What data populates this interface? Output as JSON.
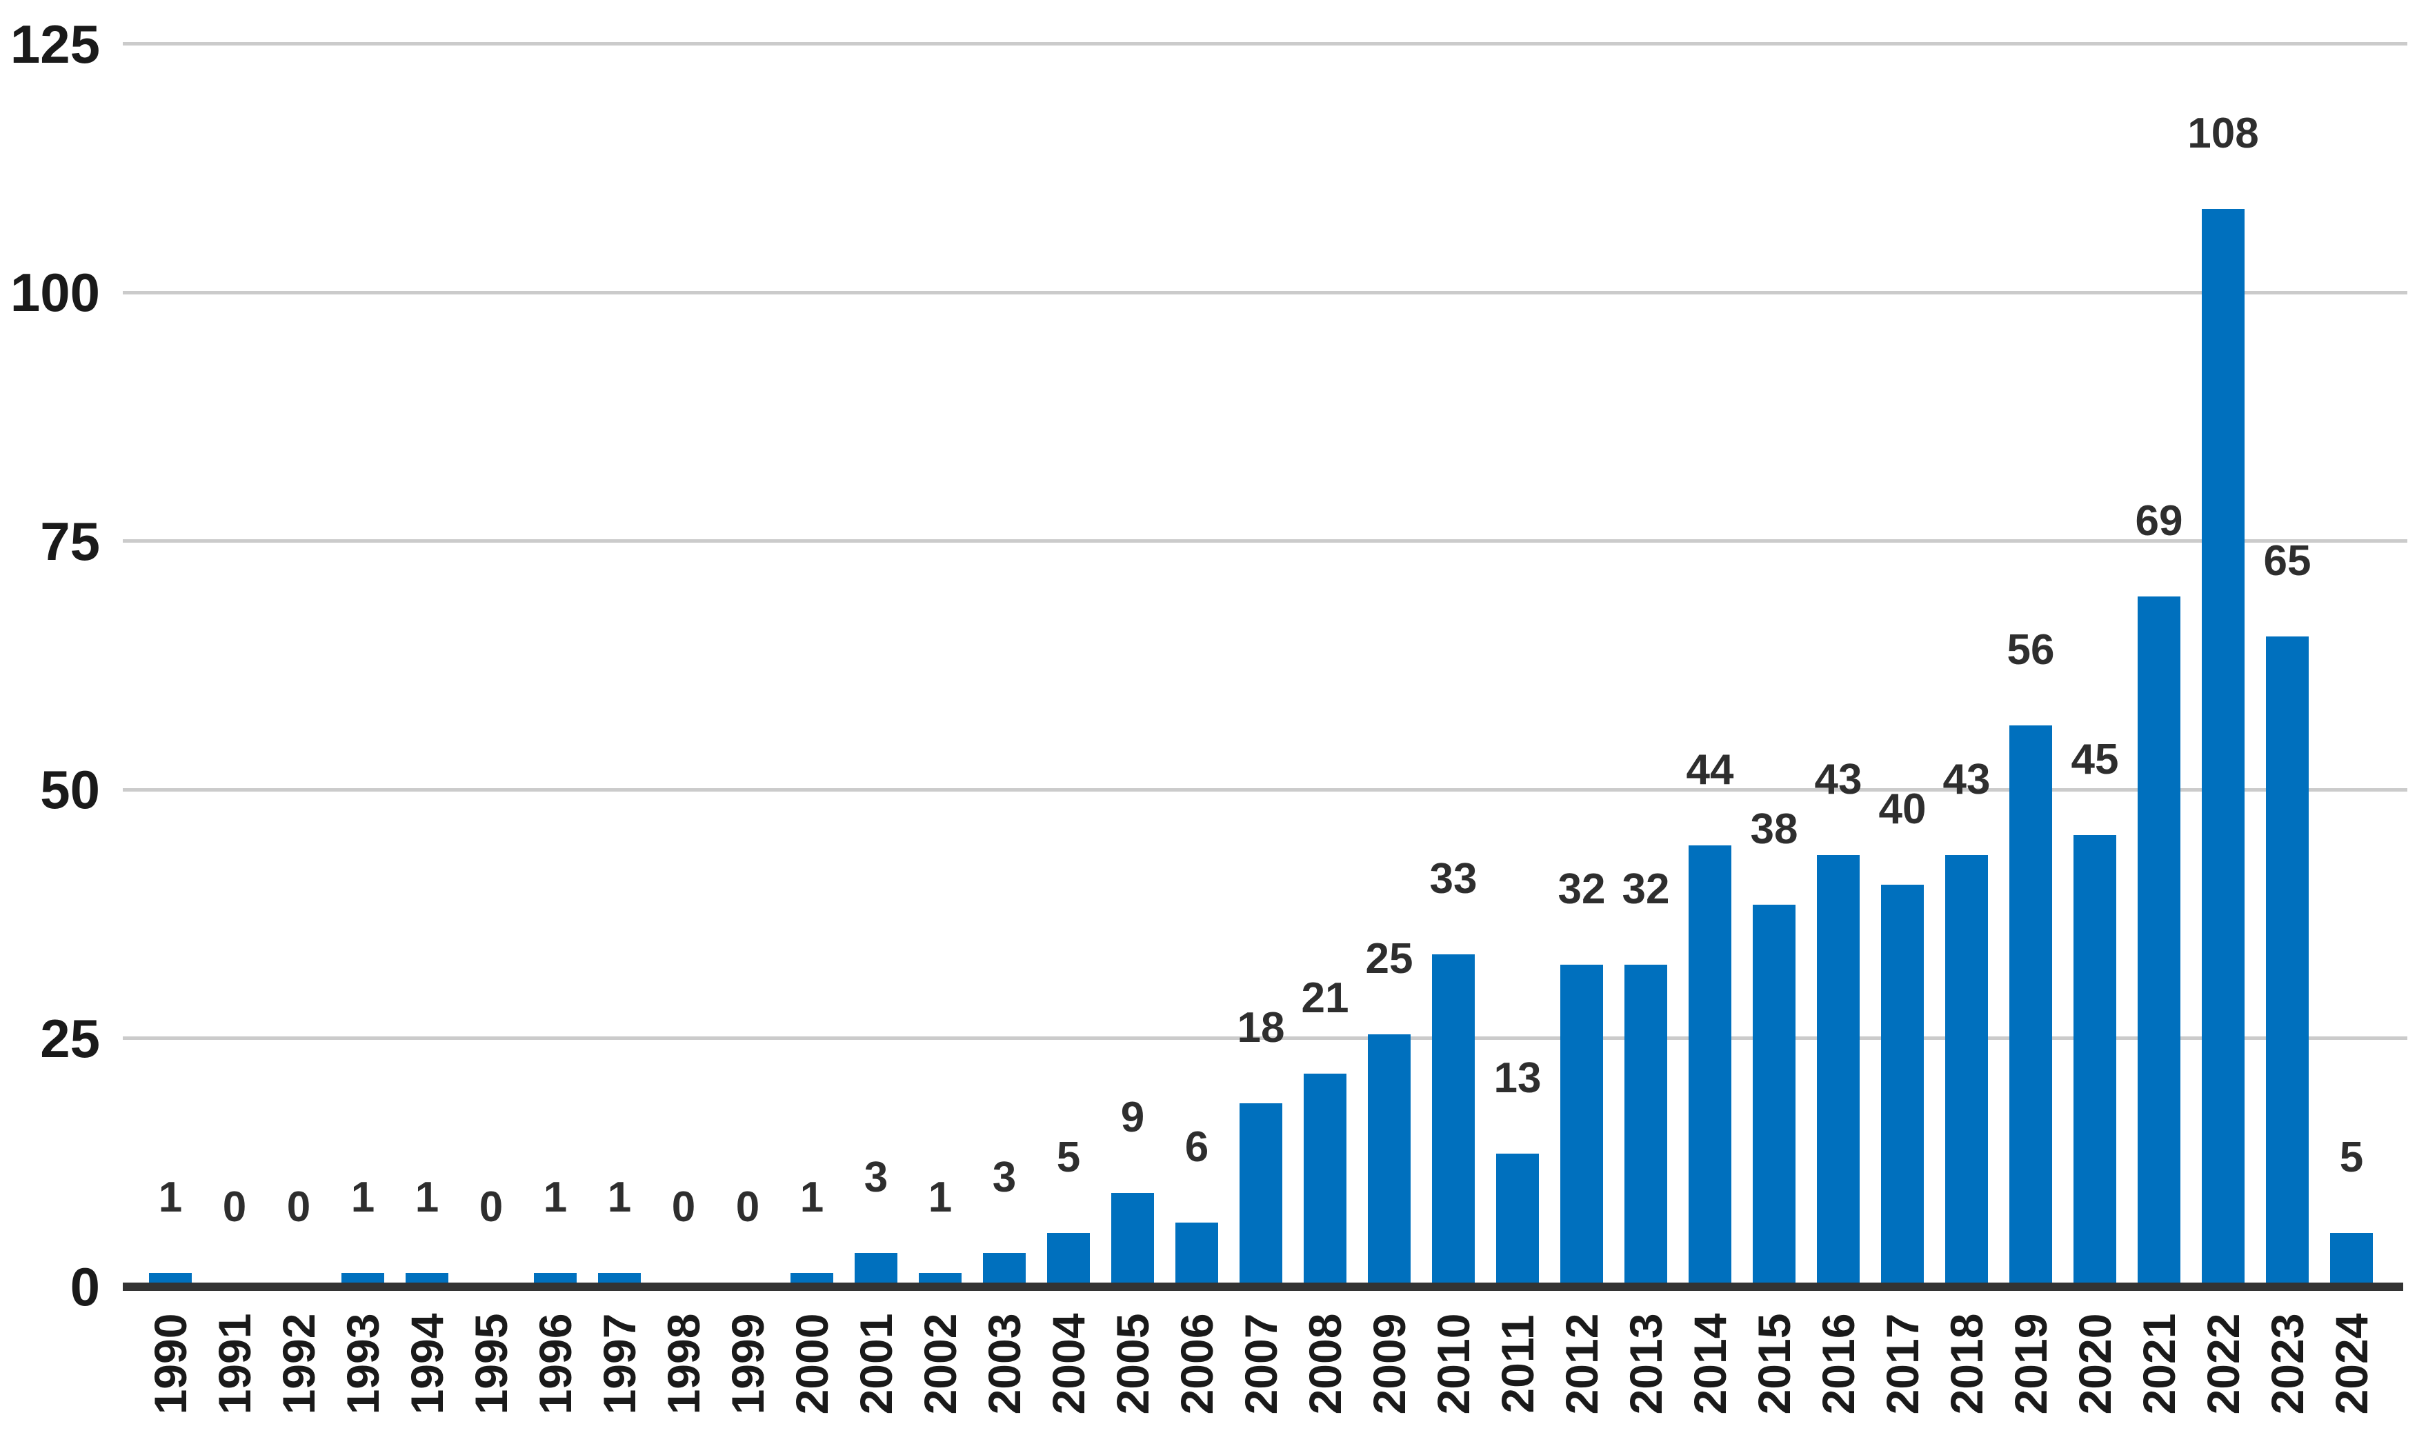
{
  "chart_data": {
    "type": "bar",
    "title": "",
    "xlabel": "",
    "ylabel": "",
    "categories": [
      "1990",
      "1991",
      "1992",
      "1993",
      "1994",
      "1995",
      "1996",
      "1997",
      "1998",
      "1999",
      "2000",
      "2001",
      "2002",
      "2003",
      "2004",
      "2005",
      "2006",
      "2007",
      "2008",
      "2009",
      "2010",
      "2011",
      "2012",
      "2013",
      "2014",
      "2015",
      "2016",
      "2017",
      "2018",
      "2019",
      "2020",
      "2021",
      "2022",
      "2023",
      "2024"
    ],
    "values": [
      1,
      0,
      0,
      1,
      1,
      0,
      1,
      1,
      0,
      0,
      1,
      3,
      1,
      3,
      5,
      9,
      6,
      18,
      21,
      25,
      33,
      13,
      32,
      32,
      44,
      38,
      43,
      40,
      43,
      56,
      45,
      69,
      108,
      65,
      5
    ],
    "data_labels": [
      1,
      0,
      0,
      1,
      1,
      0,
      1,
      1,
      0,
      0,
      1,
      3,
      1,
      3,
      5,
      9,
      6,
      18,
      21,
      25,
      33,
      13,
      32,
      32,
      44,
      38,
      43,
      40,
      43,
      56,
      45,
      69,
      108,
      65,
      5
    ],
    "ylim": [
      0,
      125
    ],
    "yticks": [
      0,
      25,
      50,
      75,
      100,
      125
    ],
    "ytick_labels": [
      "0",
      "25",
      "50",
      "75",
      "100",
      "125"
    ],
    "grid": true,
    "legend": false,
    "colors": {
      "bar": "#0070be",
      "gridline": "#cbcbcb",
      "axis_line": "#333333",
      "tick_text": "#1a1a1a",
      "value_text": "#2e2e2e",
      "background": "#ffffff"
    }
  }
}
